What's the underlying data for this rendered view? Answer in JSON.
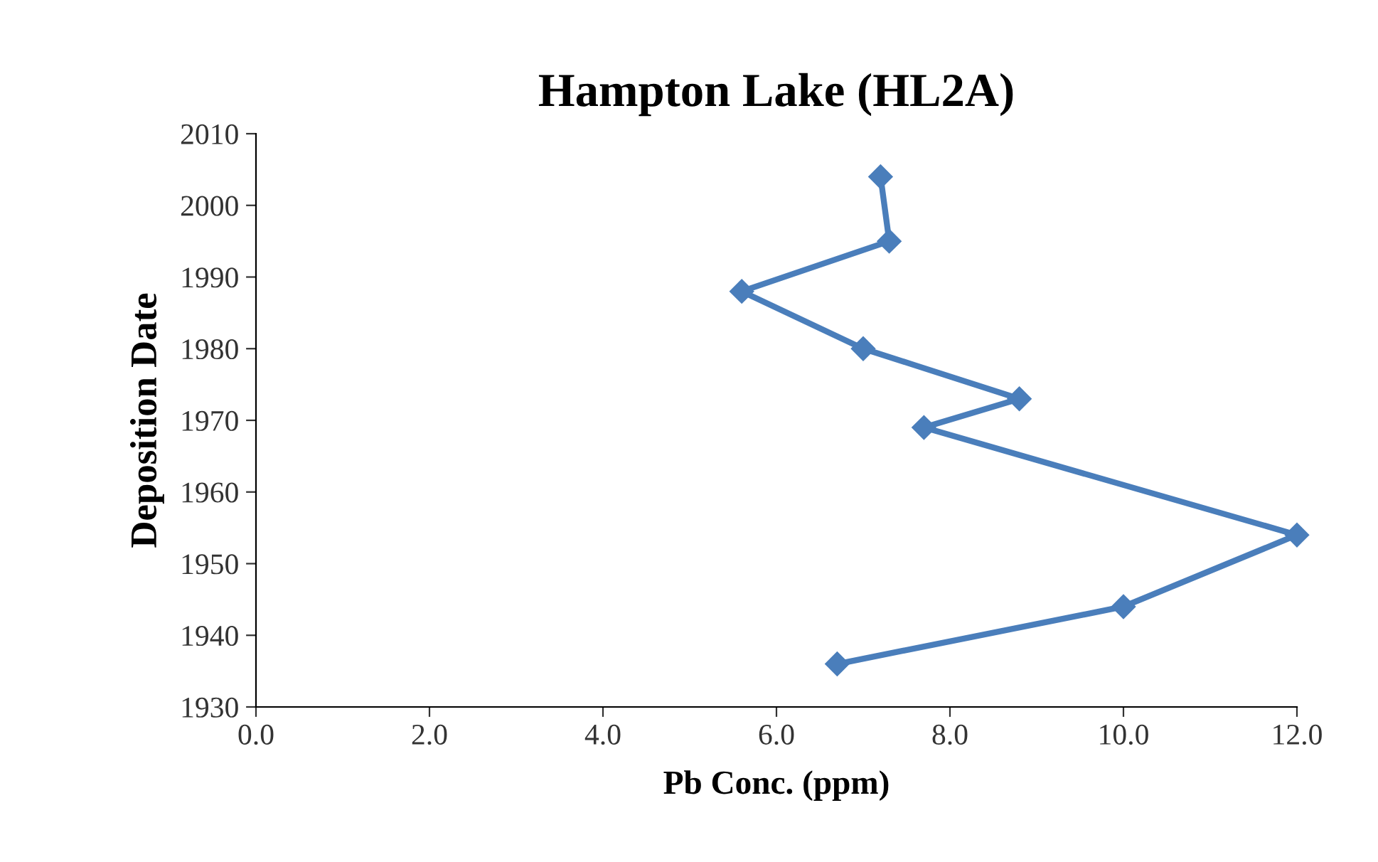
{
  "chart_data": {
    "type": "line",
    "title": "Hampton Lake (HL2A)",
    "xlabel": "Pb Conc. (ppm)",
    "ylabel": "Deposition Date",
    "series": [
      {
        "color": "#4a7ebb",
        "x": [
          7.2,
          7.3,
          5.6,
          7.0,
          8.8,
          7.7,
          12.0,
          10.0,
          6.7
        ],
        "values": [
          2004,
          1995,
          1988,
          1980,
          1973,
          1969,
          1954,
          1944,
          1936
        ]
      }
    ],
    "marker": "diamond",
    "line_style": "solid",
    "grid": false,
    "legend": false,
    "xlim": [
      0,
      12
    ],
    "xticks": [
      {
        "value": 0,
        "label": "0.0"
      },
      {
        "value": 2,
        "label": "2.0"
      },
      {
        "value": 4,
        "label": "4.0"
      },
      {
        "value": 6,
        "label": "6.0"
      },
      {
        "value": 8,
        "label": "8.0"
      },
      {
        "value": 10,
        "label": "10.0"
      },
      {
        "value": 12,
        "label": "12.0"
      }
    ],
    "ylim": [
      1930,
      2010
    ],
    "yticks": [
      1930,
      1940,
      1950,
      1960,
      1970,
      1980,
      1990,
      2000,
      2010
    ]
  }
}
